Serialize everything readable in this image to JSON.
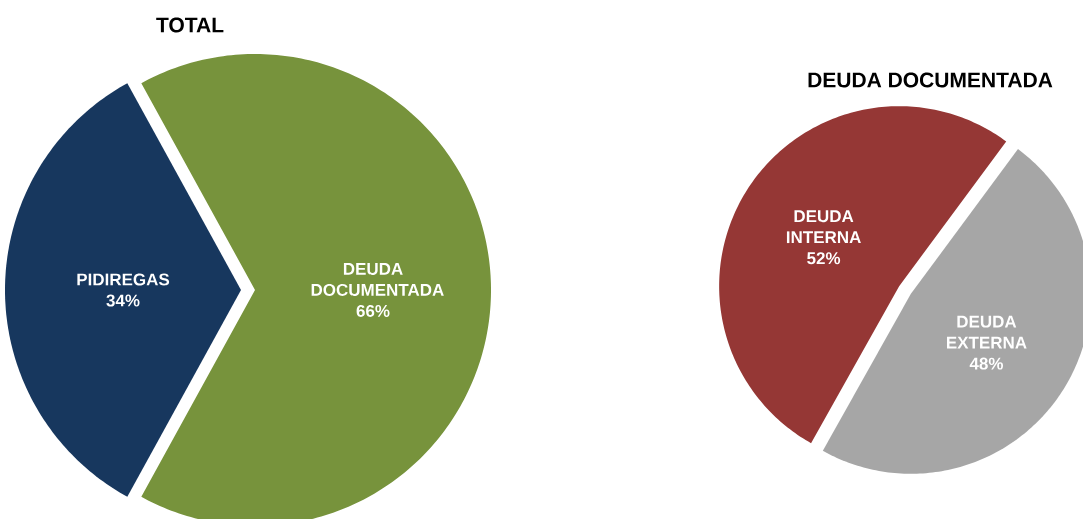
{
  "chart_data": [
    {
      "type": "pie",
      "title": "TOTAL",
      "categories": [
        "PIDIREGAS",
        "DEUDA DOCUMENTADA"
      ],
      "values": [
        34,
        66
      ],
      "colors": [
        "#17375e",
        "#77933c"
      ],
      "value_labels": [
        "34%",
        "66%"
      ]
    },
    {
      "type": "pie",
      "title": "DEUDA DOCUMENTADA",
      "categories": [
        "DEUDA INTERNA",
        "DEUDA EXTERNA"
      ],
      "values": [
        52,
        48
      ],
      "colors": [
        "#953735",
        "#a6a6a6"
      ],
      "value_labels": [
        "52%",
        "48%"
      ]
    }
  ]
}
